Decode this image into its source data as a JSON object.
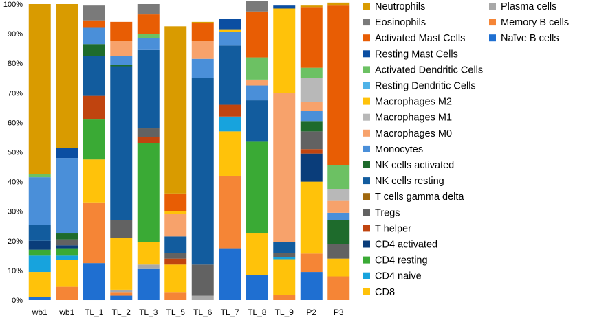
{
  "chart_data": {
    "type": "bar",
    "stacked": true,
    "normalized": true,
    "title": "",
    "xlabel": "",
    "ylabel": "",
    "ylim": [
      0,
      100
    ],
    "yticks": [
      "0%",
      "10%",
      "20%",
      "30%",
      "40%",
      "50%",
      "60%",
      "70%",
      "80%",
      "90%",
      "100%"
    ],
    "grid": false,
    "legend_position": "right",
    "categories": [
      "wb1",
      "wb1",
      "TL_1",
      "TL_2",
      "TL_3",
      "TL_5",
      "TL_6",
      "TL_7",
      "TL_8",
      "TL_9",
      "P2",
      "P3"
    ],
    "series": [
      {
        "name": "Naïve B cells",
        "color": "#1f6fd1",
        "values": [
          1,
          0,
          12.5,
          1.5,
          10.5,
          0,
          0,
          17.5,
          8.5,
          0,
          9.5,
          0
        ]
      },
      {
        "name": "Memory B cells",
        "color": "#f58536",
        "values": [
          0,
          4.5,
          20.5,
          1,
          0,
          2.5,
          0,
          24.5,
          0,
          1.8,
          6.2,
          8
        ]
      },
      {
        "name": "Plasma cells",
        "color": "#a8a8a8",
        "values": [
          0,
          0,
          0,
          1,
          1.5,
          0,
          1.5,
          0,
          0,
          0,
          0,
          0
        ]
      },
      {
        "name": "CD8",
        "color": "#ffc20a",
        "values": [
          8.5,
          9,
          14.5,
          17.5,
          7.5,
          9.5,
          0,
          15,
          14,
          12,
          24.3,
          6
        ]
      },
      {
        "name": "CD4 naive",
        "color": "#17a3dd",
        "values": [
          5.5,
          1.5,
          0,
          0,
          0,
          0,
          0,
          5,
          0,
          0.7,
          0,
          0
        ]
      },
      {
        "name": "CD4 resting",
        "color": "#3aaa35",
        "values": [
          2,
          2.5,
          13.5,
          0,
          33.5,
          0,
          0,
          0,
          31,
          0,
          0,
          0
        ]
      },
      {
        "name": "CD4 activated",
        "color": "#0a3d7a",
        "values": [
          3,
          1,
          0,
          0,
          0,
          0,
          0,
          0,
          0,
          0,
          9.5,
          0
        ]
      },
      {
        "name": "T helper",
        "color": "#c0440f",
        "values": [
          0,
          0,
          8,
          0,
          2,
          2,
          0,
          4,
          0,
          0,
          1.5,
          0
        ]
      },
      {
        "name": "T cells gamma delta",
        "color": "#a0680e",
        "values": [
          0,
          0,
          0,
          0,
          0,
          0,
          0,
          0,
          0,
          0,
          0,
          0
        ]
      },
      {
        "name": "Tregs",
        "color": "#626262",
        "values": [
          0,
          2,
          0,
          6,
          3,
          2,
          10.5,
          0,
          0,
          1.5,
          6,
          5
        ]
      },
      {
        "name": "NK cells resting",
        "color": "#125c9e",
        "values": [
          5.5,
          0,
          13.5,
          52,
          26.5,
          5.5,
          63,
          20,
          14,
          3.5,
          0,
          0
        ]
      },
      {
        "name": "NK cells activated",
        "color": "#1e6b2c",
        "values": [
          0,
          2,
          4,
          0.5,
          0,
          0,
          0,
          0,
          0,
          0,
          3.5,
          8
        ]
      },
      {
        "name": "Monocytes",
        "color": "#4a8fd9",
        "values": [
          16,
          25.5,
          5.5,
          3,
          4,
          0,
          6.5,
          4.5,
          5,
          0,
          3.5,
          2.5
        ]
      },
      {
        "name": "Macrophages M0",
        "color": "#f7a26b",
        "values": [
          0,
          0,
          0,
          5,
          0,
          7.5,
          6,
          0,
          2,
          50.5,
          3,
          4
        ]
      },
      {
        "name": "Macrophages M1",
        "color": "#b8b8b8",
        "values": [
          0,
          0,
          0,
          0,
          0,
          0,
          0,
          0,
          0,
          0,
          8,
          4
        ]
      },
      {
        "name": "Macrophages M2",
        "color": "#ffc20a",
        "values": [
          0,
          0,
          0,
          0,
          0,
          1,
          0,
          1,
          0,
          28.5,
          0,
          0
        ]
      },
      {
        "name": "Resting Dendritic Cells",
        "color": "#4fb3e8",
        "values": [
          0,
          0,
          0,
          0,
          0,
          0,
          0,
          0,
          0,
          0,
          0,
          0
        ]
      },
      {
        "name": "Activated Dendritic Cells",
        "color": "#6cc163",
        "values": [
          1,
          0,
          0,
          0,
          1.5,
          0,
          0,
          0,
          7.5,
          0,
          3.5,
          8
        ]
      },
      {
        "name": "Resting Mast Cells",
        "color": "#0b4ea2",
        "values": [
          0,
          3.5,
          0,
          0,
          0,
          0,
          0,
          3.5,
          0,
          1,
          0,
          0
        ]
      },
      {
        "name": "Activated Mast Cells",
        "color": "#e85d04",
        "values": [
          0,
          0,
          2.5,
          6.5,
          6.5,
          6,
          6,
          0,
          15.5,
          0,
          20.5,
          54
        ]
      },
      {
        "name": "Eosinophils",
        "color": "#7a7a7a",
        "values": [
          0,
          0,
          5,
          0,
          3.5,
          0,
          0,
          0,
          3.5,
          0,
          0,
          0
        ]
      },
      {
        "name": "Neutrophils",
        "color": "#d99b00",
        "values": [
          57.5,
          48.5,
          0,
          0,
          0,
          56.5,
          0.5,
          0,
          0,
          0,
          0.5,
          1
        ]
      }
    ],
    "legend": {
      "column1": [
        "Neutrophils",
        "Eosinophils",
        "Activated Mast Cells",
        "Resting Mast Cells",
        "Activated Dendritic Cells",
        "Resting Dendritic Cells",
        "Macrophages M2",
        "Macrophages M1",
        "Macrophages M0",
        "Monocytes",
        "NK cells activated",
        "NK cells resting",
        "T cells gamma delta",
        "Tregs",
        "T helper",
        "CD4 activated",
        "CD4 resting",
        "CD4 naive",
        "CD8"
      ],
      "column2": [
        "Plasma cells",
        "Memory B cells",
        "Naïve B cells"
      ]
    }
  }
}
